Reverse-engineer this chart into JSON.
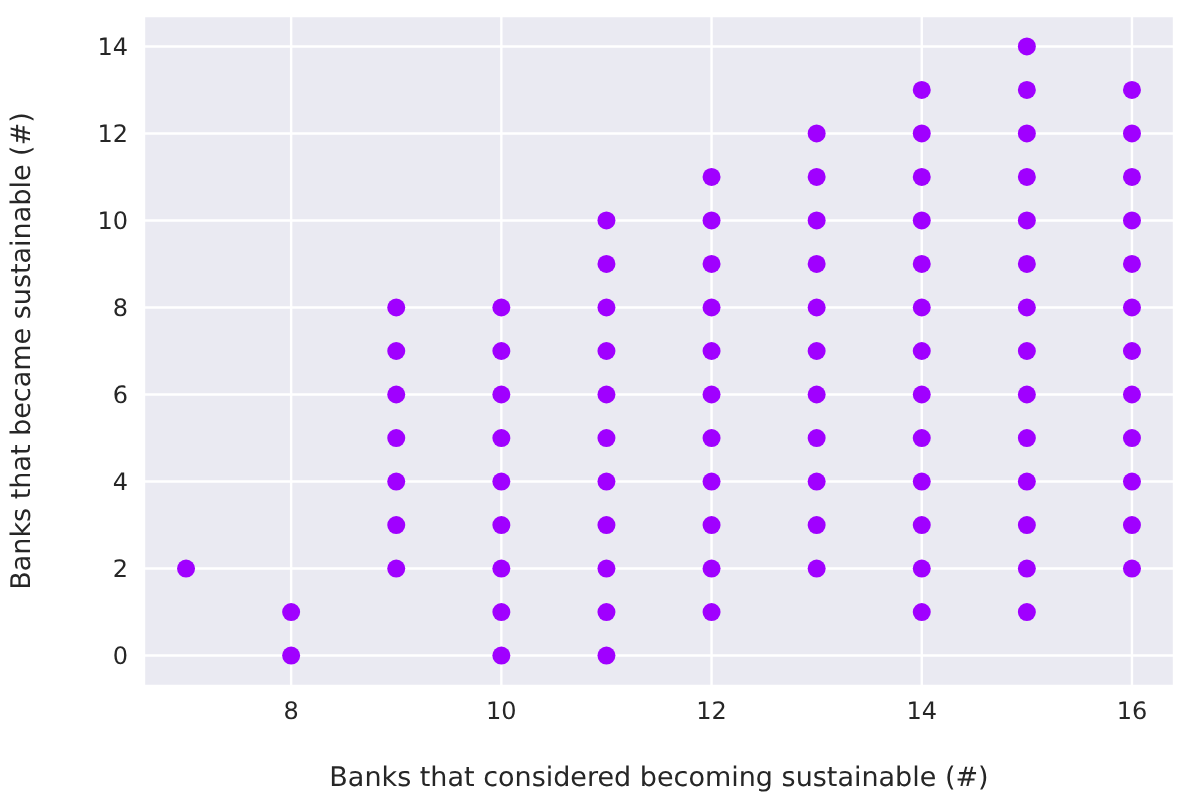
{
  "chart_data": {
    "type": "scatter",
    "xlabel": "Banks that considered becoming sustainable (#)",
    "ylabel": "Banks that became sustainable (#)",
    "x": [
      7,
      8,
      8,
      9,
      9,
      9,
      9,
      9,
      9,
      9,
      10,
      10,
      10,
      10,
      10,
      10,
      10,
      10,
      10,
      11,
      11,
      11,
      11,
      11,
      11,
      11,
      11,
      11,
      11,
      11,
      12,
      12,
      12,
      12,
      12,
      12,
      12,
      12,
      12,
      12,
      12,
      13,
      13,
      13,
      13,
      13,
      13,
      13,
      13,
      13,
      13,
      13,
      14,
      14,
      14,
      14,
      14,
      14,
      14,
      14,
      14,
      14,
      14,
      14,
      14,
      15,
      15,
      15,
      15,
      15,
      15,
      15,
      15,
      15,
      15,
      15,
      15,
      15,
      15,
      16,
      16,
      16,
      16,
      16,
      16,
      16,
      16,
      16,
      16,
      16,
      16
    ],
    "values": [
      2,
      0,
      1,
      2,
      3,
      4,
      5,
      6,
      7,
      8,
      0,
      1,
      2,
      3,
      4,
      5,
      6,
      7,
      8,
      0,
      1,
      2,
      3,
      4,
      5,
      6,
      7,
      8,
      9,
      10,
      1,
      2,
      3,
      4,
      5,
      6,
      7,
      8,
      9,
      10,
      11,
      2,
      3,
      4,
      5,
      6,
      7,
      8,
      9,
      10,
      11,
      12,
      1,
      2,
      3,
      4,
      5,
      6,
      7,
      8,
      9,
      10,
      11,
      12,
      13,
      1,
      2,
      3,
      4,
      5,
      6,
      7,
      8,
      9,
      10,
      11,
      12,
      13,
      14,
      2,
      3,
      4,
      5,
      6,
      7,
      8,
      9,
      10,
      11,
      12,
      13
    ],
    "color": "#a000ff",
    "marker": "circle",
    "grid": true,
    "xlim": [
      6.6,
      16.4
    ],
    "xticks": [
      8,
      10,
      12,
      14,
      16
    ],
    "ylim": [
      -0.7,
      14.7
    ],
    "yticks": [
      0,
      2,
      4,
      6,
      8,
      10,
      12,
      14
    ]
  }
}
